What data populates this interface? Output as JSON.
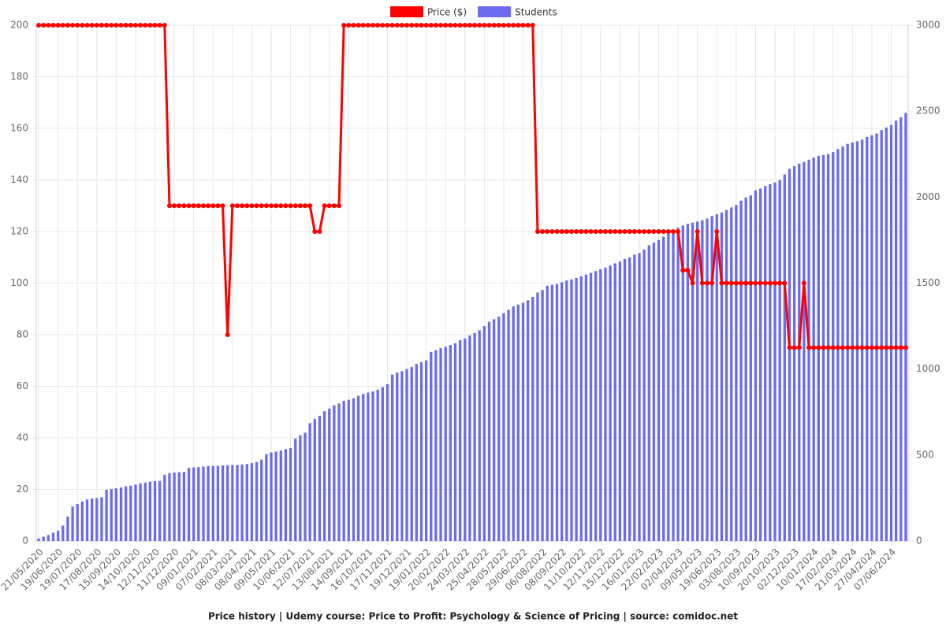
{
  "chart_data": {
    "type": "bar",
    "title": "Price history | Udemy course: Price to Profit: Psychology & Science of Pricing | source: comidoc.net",
    "categories": [
      "21/05/2020",
      null,
      null,
      null,
      "19/06/2020",
      null,
      null,
      null,
      "19/07/2020",
      null,
      null,
      null,
      "17/08/2020",
      null,
      null,
      null,
      "15/09/2020",
      null,
      null,
      null,
      "14/10/2020",
      null,
      null,
      null,
      "12/11/2020",
      null,
      null,
      null,
      "11/12/2020",
      null,
      null,
      null,
      "09/01/2021",
      null,
      null,
      null,
      "07/02/2021",
      null,
      null,
      null,
      "08/03/2021",
      null,
      null,
      null,
      "08/04/2021",
      null,
      null,
      null,
      "09/05/2021",
      null,
      null,
      null,
      "10/06/2021",
      null,
      null,
      null,
      "12/07/2021",
      null,
      null,
      null,
      "13/08/2021",
      null,
      null,
      null,
      "14/09/2021",
      null,
      null,
      null,
      "16/10/2021",
      null,
      null,
      null,
      "17/11/2021",
      null,
      null,
      null,
      "19/12/2021",
      null,
      null,
      null,
      "19/01/2022",
      null,
      null,
      null,
      "20/02/2022",
      null,
      null,
      null,
      "24/03/2022",
      null,
      null,
      null,
      "25/04/2022",
      null,
      null,
      null,
      "28/05/2022",
      null,
      null,
      null,
      "29/06/2022",
      null,
      null,
      null,
      "06/08/2022",
      null,
      null,
      null,
      "08/09/2022",
      null,
      null,
      null,
      "11/10/2022",
      null,
      null,
      null,
      "12/11/2022",
      null,
      null,
      null,
      "15/12/2022",
      null,
      null,
      null,
      "16/01/2023",
      null,
      null,
      null,
      "22/02/2023",
      null,
      null,
      null,
      "02/04/2023",
      null,
      null,
      null,
      "09/05/2023",
      null,
      null,
      null,
      "19/06/2023",
      null,
      null,
      null,
      "03/08/2023",
      null,
      null,
      null,
      "10/09/2023",
      null,
      null,
      null,
      "20/10/2023",
      null,
      null,
      null,
      "02/12/2023",
      null,
      null,
      null,
      "10/01/2024",
      null,
      null,
      null,
      "17/02/2024",
      null,
      null,
      null,
      "21/03/2024",
      null,
      null,
      null,
      "27/04/2024",
      null,
      null,
      null,
      "07/06/2024",
      null,
      null,
      null
    ],
    "series": [
      {
        "name": "Price ($)",
        "color": "#ff0000",
        "type": "line",
        "values": [
          200,
          200,
          200,
          200,
          200,
          200,
          200,
          200,
          200,
          200,
          200,
          200,
          200,
          200,
          200,
          200,
          200,
          200,
          200,
          200,
          200,
          200,
          200,
          200,
          200,
          200,
          200,
          130,
          130,
          130,
          130,
          130,
          130,
          130,
          130,
          130,
          130,
          130,
          130,
          80,
          130,
          130,
          130,
          130,
          130,
          130,
          130,
          130,
          130,
          130,
          130,
          130,
          130,
          130,
          130,
          130,
          130,
          120,
          120,
          130,
          130,
          130,
          130,
          200,
          200,
          200,
          200,
          200,
          200,
          200,
          200,
          200,
          200,
          200,
          200,
          200,
          200,
          200,
          200,
          200,
          200,
          200,
          200,
          200,
          200,
          200,
          200,
          200,
          200,
          200,
          200,
          200,
          200,
          200,
          200,
          200,
          200,
          200,
          200,
          200,
          200,
          200,
          200,
          120,
          120,
          120,
          120,
          120,
          120,
          120,
          120,
          120,
          120,
          120,
          120,
          120,
          120,
          120,
          120,
          120,
          120,
          120,
          120,
          120,
          120,
          120,
          120,
          120,
          120,
          120,
          120,
          120,
          120,
          105,
          105,
          100,
          120,
          100,
          100,
          100,
          120,
          100,
          100,
          100,
          100,
          100,
          100,
          100,
          100,
          100,
          100,
          100,
          100,
          100,
          100,
          75,
          75,
          75,
          100,
          75,
          75,
          75,
          75,
          75,
          75,
          75,
          75,
          75,
          75,
          75,
          75,
          75,
          75,
          75,
          75,
          75,
          75,
          75,
          75,
          75
        ]
      },
      {
        "name": "Students",
        "color": "#6b6bef",
        "type": "bar",
        "axis": "y2",
        "values": [
          15,
          25,
          35,
          48,
          60,
          90,
          142,
          200,
          215,
          230,
          242,
          247,
          250,
          255,
          298,
          302,
          306,
          312,
          318,
          322,
          328,
          335,
          340,
          345,
          348,
          350,
          385,
          395,
          398,
          400,
          402,
          425,
          428,
          430,
          433,
          436,
          437,
          438,
          440,
          441,
          442,
          443,
          445,
          448,
          453,
          460,
          473,
          505,
          515,
          520,
          527,
          535,
          540,
          595,
          615,
          630,
          685,
          710,
          728,
          755,
          770,
          790,
          800,
          815,
          822,
          830,
          845,
          855,
          863,
          870,
          880,
          895,
          912,
          968,
          980,
          988,
          1000,
          1012,
          1030,
          1040,
          1050,
          1100,
          1110,
          1122,
          1130,
          1140,
          1150,
          1168,
          1178,
          1195,
          1210,
          1226,
          1250,
          1275,
          1290,
          1305,
          1325,
          1345,
          1365,
          1375,
          1385,
          1400,
          1420,
          1445,
          1460,
          1485,
          1490,
          1495,
          1505,
          1515,
          1522,
          1530,
          1540,
          1550,
          1560,
          1570,
          1580,
          1590,
          1602,
          1615,
          1625,
          1640,
          1650,
          1665,
          1675,
          1695,
          1720,
          1735,
          1750,
          1770,
          1790,
          1810,
          1822,
          1835,
          1845,
          1852,
          1858,
          1866,
          1875,
          1890,
          1900,
          1910,
          1925,
          1940,
          1955,
          1980,
          1998,
          2010,
          2040,
          2050,
          2065,
          2075,
          2085,
          2100,
          2132,
          2165,
          2180,
          2195,
          2205,
          2218,
          2230,
          2240,
          2245,
          2250,
          2262,
          2280,
          2295,
          2310,
          2318,
          2325,
          2335,
          2350,
          2360,
          2370,
          2390,
          2405,
          2420,
          2445,
          2465,
          2490
        ]
      }
    ],
    "ylim": [
      0,
      200
    ],
    "yticks": [
      0,
      20,
      40,
      60,
      80,
      100,
      120,
      140,
      160,
      180,
      200
    ],
    "y2lim": [
      0,
      3000
    ],
    "y2ticks": [
      0,
      500,
      1000,
      1500,
      2000,
      2500,
      3000
    ],
    "grid": true,
    "legend": "top"
  }
}
